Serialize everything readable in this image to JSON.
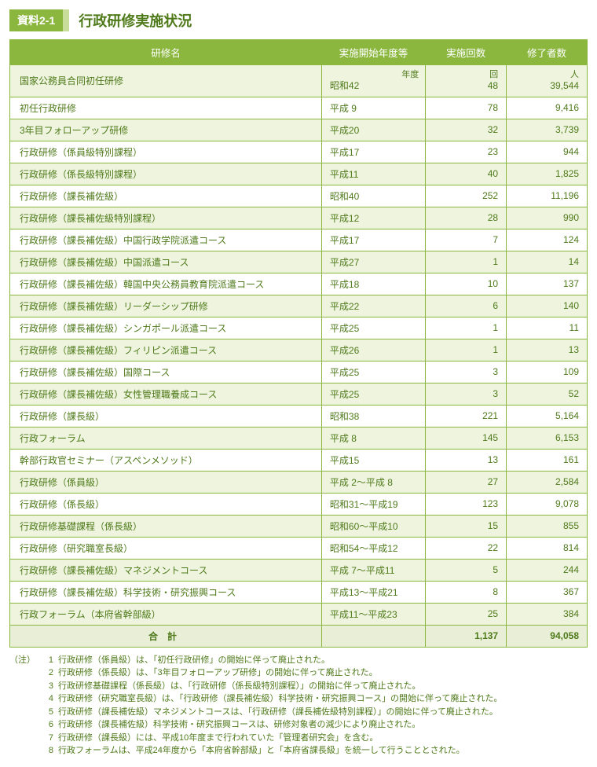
{
  "badge": "資料2-1",
  "title": "行政研修実施状況",
  "columns": [
    "研修名",
    "実施開始年度等",
    "実施回数",
    "修了者数"
  ],
  "firstRow": {
    "name": "国家公務員合同初任研修",
    "yearUnit": "年度",
    "yearVal": "昭和42",
    "countUnit": "回",
    "countVal": "48",
    "gradUnit": "人",
    "gradVal": "39,544"
  },
  "rows": [
    {
      "name": "初任行政研修",
      "year": "平成  9",
      "count": "78",
      "grad": "9,416"
    },
    {
      "name": "3年目フォローアップ研修",
      "year": "平成20",
      "count": "32",
      "grad": "3,739"
    },
    {
      "name": "行政研修（係員級特別課程）",
      "year": "平成17",
      "count": "23",
      "grad": "944"
    },
    {
      "name": "行政研修（係長級特別課程）",
      "year": "平成11",
      "count": "40",
      "grad": "1,825"
    },
    {
      "name": "行政研修（課長補佐級）",
      "year": "昭和40",
      "count": "252",
      "grad": "11,196"
    },
    {
      "name": "行政研修（課長補佐級特別課程）",
      "year": "平成12",
      "count": "28",
      "grad": "990"
    },
    {
      "name": "行政研修（課長補佐級）中国行政学院派遣コース",
      "year": "平成17",
      "count": "7",
      "grad": "124"
    },
    {
      "name": "行政研修（課長補佐級）中国派遣コース",
      "year": "平成27",
      "count": "1",
      "grad": "14"
    },
    {
      "name": "行政研修（課長補佐級）韓国中央公務員教育院派遣コース",
      "year": "平成18",
      "count": "10",
      "grad": "137"
    },
    {
      "name": "行政研修（課長補佐級）リーダーシップ研修",
      "year": "平成22",
      "count": "6",
      "grad": "140"
    },
    {
      "name": "行政研修（課長補佐級）シンガポール派遣コース",
      "year": "平成25",
      "count": "1",
      "grad": "11"
    },
    {
      "name": "行政研修（課長補佐級）フィリピン派遣コース",
      "year": "平成26",
      "count": "1",
      "grad": "13"
    },
    {
      "name": "行政研修（課長補佐級）国際コース",
      "year": "平成25",
      "count": "3",
      "grad": "109"
    },
    {
      "name": "行政研修（課長補佐級）女性管理職養成コース",
      "year": "平成25",
      "count": "3",
      "grad": "52"
    },
    {
      "name": "行政研修（課長級）",
      "year": "昭和38",
      "count": "221",
      "grad": "5,164"
    },
    {
      "name": "行政フォーラム",
      "year": "平成  8",
      "count": "145",
      "grad": "6,153"
    },
    {
      "name": "幹部行政官セミナー（アスペンメソッド）",
      "year": "平成15",
      "count": "13",
      "grad": "161"
    },
    {
      "name": "行政研修（係員級）",
      "year": "平成  2～平成  8",
      "count": "27",
      "grad": "2,584"
    },
    {
      "name": "行政研修（係長級）",
      "year": "昭和31～平成19",
      "count": "123",
      "grad": "9,078"
    },
    {
      "name": "行政研修基礎課程（係長級）",
      "year": "昭和60～平成10",
      "count": "15",
      "grad": "855"
    },
    {
      "name": "行政研修（研究職室長級）",
      "year": "昭和54～平成12",
      "count": "22",
      "grad": "814"
    },
    {
      "name": "行政研修（課長補佐級）マネジメントコース",
      "year": "平成  7～平成11",
      "count": "5",
      "grad": "244"
    },
    {
      "name": "行政研修（課長補佐級）科学技術・研究振興コース",
      "year": "平成13～平成21",
      "count": "8",
      "grad": "367"
    },
    {
      "name": "行政フォーラム（本府省幹部級）",
      "year": "平成11～平成23",
      "count": "25",
      "grad": "384"
    }
  ],
  "total": {
    "label": "合計",
    "count": "1,137",
    "grad": "94,058"
  },
  "notesLead": "（注）",
  "notes": [
    "行政研修（係員級）は、「初任行政研修」の開始に伴って廃止された。",
    "行政研修（係長級）は、「3年目フォローアップ研修」の開始に伴って廃止された。",
    "行政研修基礎課程（係長級）は、「行政研修（係長級特別課程）」の開始に伴って廃止された。",
    "行政研修（研究職室長級）は、「行政研修（課長補佐級）科学技術・研究振興コース」の開始に伴って廃止された。",
    "行政研修（課長補佐級）マネジメントコースは、「行政研修（課長補佐級特別課程）」の開始に伴って廃止された。",
    "行政研修（課長補佐級）科学技術・研究振興コースは、研修対象者の減少により廃止された。",
    "行政研修（課長級）には、平成10年度まで行われていた「管理者研究会」を含む。",
    "行政フォーラムは、平成24年度から「本府省幹部級」と「本府省課長級」を統一して行うこととされた。"
  ]
}
